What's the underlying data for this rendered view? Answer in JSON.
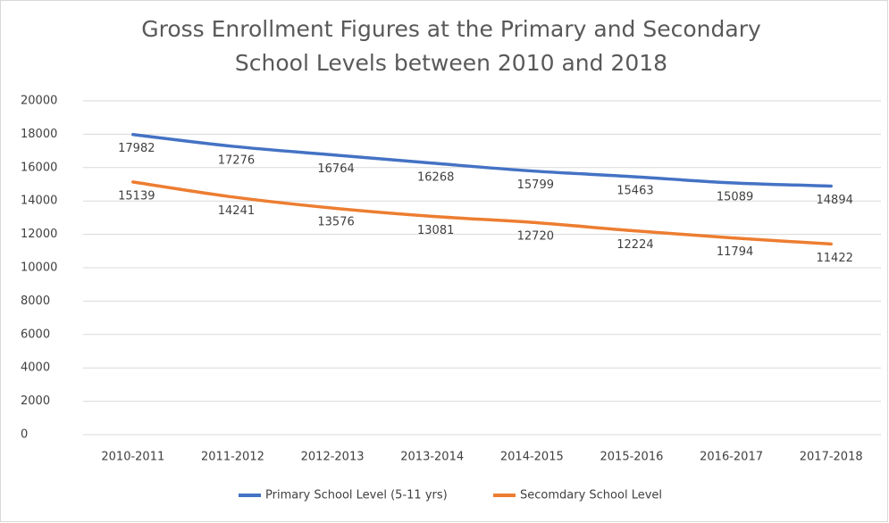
{
  "chart_data": {
    "type": "line",
    "title": "Gross Enrollment Figures at the Primary and Secondary School Levels between 2010 and 2018",
    "categories": [
      "2010-2011",
      "2011-2012",
      "2012-2013",
      "2013-2014",
      "2014-2015",
      "2015-2016",
      "2016-2017",
      "2017-2018"
    ],
    "series": [
      {
        "name": "Primary School Level (5-11 yrs)",
        "color": "#4472c4",
        "values": [
          17982,
          17276,
          16764,
          16268,
          15799,
          15463,
          15089,
          14894
        ]
      },
      {
        "name": "Secomdary School Level",
        "color": "#ed7d31",
        "values": [
          15139,
          14241,
          13576,
          13081,
          12720,
          12224,
          11794,
          11422
        ]
      }
    ],
    "ylim": [
      0,
      20000
    ],
    "yticks": [
      0,
      2000,
      4000,
      6000,
      8000,
      10000,
      12000,
      14000,
      16000,
      18000,
      20000
    ],
    "grid": true,
    "legend": "bottom"
  }
}
